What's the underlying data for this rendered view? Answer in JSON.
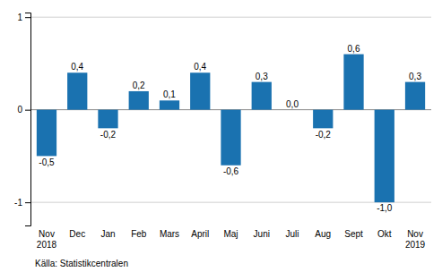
{
  "chart_data": {
    "type": "bar",
    "categories": [
      "Nov\n2018",
      "Dec",
      "Jan",
      "Feb",
      "Mars",
      "April",
      "Maj",
      "Juni",
      "Juli",
      "Aug",
      "Sept",
      "Okt",
      "Nov\n2019"
    ],
    "values": [
      -0.5,
      0.4,
      -0.2,
      0.2,
      0.1,
      0.4,
      -0.6,
      0.3,
      0.0,
      -0.2,
      0.6,
      -1.0,
      0.3
    ],
    "value_labels": [
      "-0,5",
      "0,4",
      "-0,2",
      "0,2",
      "0,1",
      "0,4",
      "-0,6",
      "0,3",
      "0,0",
      "-0,2",
      "0,6",
      "-1,0",
      "0,3"
    ],
    "color": "#1a72b0",
    "ylim": [
      -1.25,
      1.05
    ],
    "yticks": [
      -1,
      0,
      1
    ],
    "grid": true,
    "data_labels": true,
    "annotations": [
      "Källa: Statistikcentralen"
    ]
  }
}
